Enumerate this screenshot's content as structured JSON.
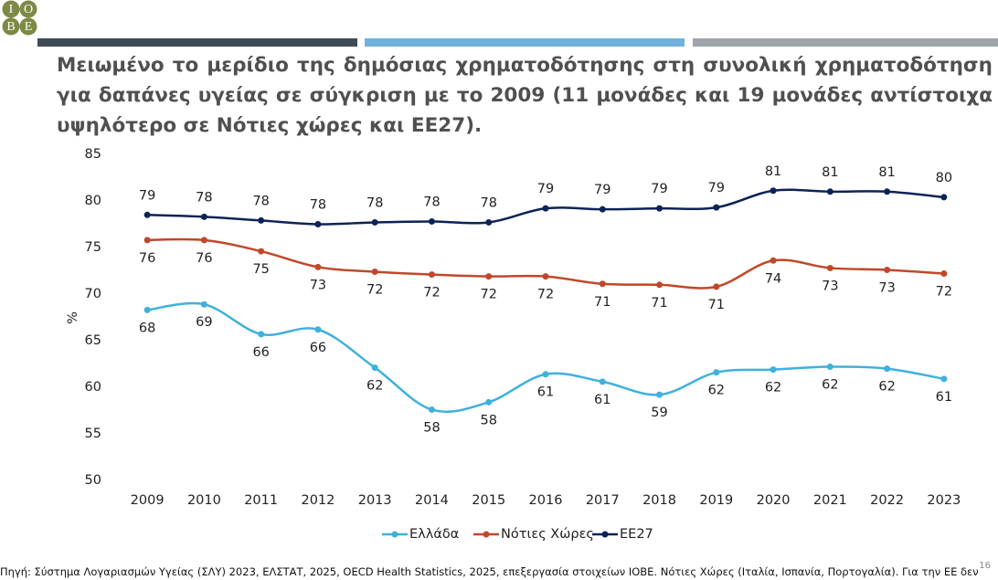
{
  "logo": [
    "I",
    "O",
    "B",
    "E"
  ],
  "title": "Μειωμένο το μερίδιο της δημόσιας χρηματοδότησης στη συνολική χρηματοδότηση για δαπάνες υγείας σε σύγκριση με το 2009 (11 μονάδες και 19 μονάδες αντίστοιχα υψηλότερο σε Νότιες χώρες και ΕΕ27).",
  "chart_data": {
    "type": "line",
    "y_label": "%",
    "categories": [
      "2009",
      "2010",
      "2011",
      "2012",
      "2013",
      "2014",
      "2015",
      "2016",
      "2017",
      "2018",
      "2019",
      "2020",
      "2021",
      "2022",
      "2023"
    ],
    "ylim": [
      50,
      85
    ],
    "yticks": [
      50,
      55,
      60,
      65,
      70,
      75,
      80,
      85
    ],
    "series": [
      {
        "name": "Ελλάδα",
        "color": "#3fb1dc",
        "values": [
          68.3,
          68.9,
          65.7,
          66.2,
          62.1,
          57.6,
          58.4,
          61.4,
          60.6,
          59.2,
          61.6,
          61.9,
          62.2,
          62.0,
          60.9
        ],
        "value_labels": [
          "68",
          "69",
          "66",
          "66",
          "62",
          "58",
          "58",
          "61",
          "61",
          "59",
          "62",
          "62",
          "62",
          "62",
          "61"
        ]
      },
      {
        "name": "Νότιες Χώρες",
        "color": "#c0482a",
        "values": [
          75.8,
          75.8,
          74.6,
          72.9,
          72.4,
          72.1,
          71.9,
          71.9,
          71.1,
          71.0,
          70.8,
          73.6,
          72.8,
          72.6,
          72.2
        ],
        "value_labels": [
          "76",
          "76",
          "75",
          "73",
          "72",
          "72",
          "72",
          "72",
          "71",
          "71",
          "71",
          "74",
          "73",
          "73",
          "72"
        ]
      },
      {
        "name": "ΕΕ27",
        "color": "#0d2356",
        "values": [
          78.5,
          78.3,
          77.9,
          77.5,
          77.7,
          77.8,
          77.7,
          79.2,
          79.1,
          79.2,
          79.3,
          81.1,
          81.0,
          81.0,
          80.4
        ],
        "value_labels": [
          "79",
          "78",
          "78",
          "78",
          "78",
          "78",
          "78",
          "79",
          "79",
          "79",
          "79",
          "81",
          "81",
          "81",
          "80"
        ]
      }
    ]
  },
  "source": "Πηγή: Σύστημα Λογαριασμών Υγείας (ΣΛΥ) 2023, ΕΛΣΤΑΤ, 2025, OECD Health Statistics, 2025, επεξεργασία στοιχείων ΙΟΒΕ. Νότιες Χώρες (Ιταλία, Ισπανία, Πορτογαλία). Για την ΕΕ δεν",
  "page_number": "16"
}
